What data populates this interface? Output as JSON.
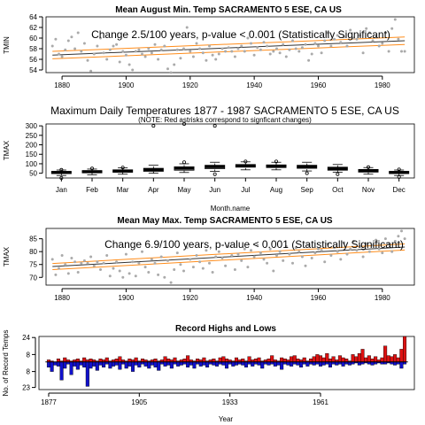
{
  "colors": {
    "points": "#aaaaaa",
    "fit": "#333333",
    "band": "#ff8c1a",
    "high": "#dd1111",
    "low": "#1111cc"
  },
  "chart_data": [
    {
      "id": "aug",
      "type": "scatter",
      "title": "Mean August Min. Temp SACRAMENTO 5 ESE, CA US",
      "annotation": "Change 2.5/100 years, p-value < 0.001 (Statistically Significant)",
      "ylabel": "TMIN",
      "xlim": [
        1875,
        1990
      ],
      "ylim": [
        53.5,
        64
      ],
      "xticks": [
        1880,
        1900,
        1920,
        1940,
        1960,
        1980
      ],
      "yticks": [
        54,
        56,
        58,
        60,
        62,
        64
      ],
      "fit": {
        "x": [
          1877,
          1987
        ],
        "y": [
          56.8,
          59.5
        ],
        "band": 0.7
      },
      "x": [
        1877,
        1878,
        1879,
        1880,
        1881,
        1882,
        1883,
        1884,
        1885,
        1886,
        1887,
        1888,
        1889,
        1890,
        1891,
        1892,
        1893,
        1894,
        1895,
        1896,
        1897,
        1898,
        1899,
        1900,
        1901,
        1902,
        1903,
        1904,
        1905,
        1906,
        1907,
        1908,
        1909,
        1910,
        1911,
        1912,
        1913,
        1914,
        1915,
        1916,
        1917,
        1918,
        1919,
        1920,
        1921,
        1922,
        1923,
        1924,
        1925,
        1926,
        1927,
        1928,
        1929,
        1930,
        1931,
        1932,
        1933,
        1934,
        1935,
        1936,
        1937,
        1938,
        1939,
        1940,
        1941,
        1942,
        1943,
        1944,
        1945,
        1946,
        1947,
        1948,
        1949,
        1950,
        1951,
        1952,
        1953,
        1954,
        1955,
        1956,
        1957,
        1958,
        1959,
        1960,
        1961,
        1962,
        1963,
        1964,
        1965,
        1966,
        1967,
        1968,
        1969,
        1970,
        1971,
        1972,
        1973,
        1974,
        1975,
        1976,
        1977,
        1978,
        1979,
        1980,
        1981,
        1982,
        1983,
        1984,
        1985,
        1986,
        1987
      ],
      "y": [
        58.5,
        59.8,
        57.0,
        56.5,
        57.8,
        59.5,
        60.2,
        58.0,
        61.0,
        57.5,
        59.0,
        55.8,
        53.8,
        57.0,
        58.5,
        60.0,
        57.2,
        56.0,
        57.8,
        58.5,
        58.8,
        55.5,
        57.5,
        56.8,
        55.0,
        54.0,
        57.5,
        57.8,
        57.0,
        56.5,
        58.0,
        57.2,
        58.8,
        56.0,
        57.8,
        58.5,
        54.2,
        53.5,
        55.0,
        57.8,
        56.2,
        58.0,
        62.0,
        57.5,
        56.5,
        59.0,
        58.0,
        57.2,
        55.8,
        58.5,
        56.8,
        56.0,
        57.0,
        58.0,
        57.5,
        58.2,
        57.5,
        56.5,
        58.0,
        58.5,
        57.5,
        60.0,
        59.0,
        56.8,
        58.2,
        57.8,
        59.2,
        58.5,
        57.0,
        57.5,
        58.0,
        57.2,
        58.8,
        56.5,
        57.8,
        59.5,
        58.0,
        57.5,
        58.2,
        58.8,
        55.8,
        57.0,
        59.0,
        58.5,
        57.2,
        59.5,
        61.0,
        58.5,
        59.8,
        60.5,
        59.2,
        60.2,
        58.5,
        61.5,
        60.0,
        59.8,
        60.5,
        57.2,
        61.8,
        61.0,
        59.5,
        60.2,
        58.5,
        59.0,
        61.0,
        57.5,
        61.8,
        63.5,
        59.8,
        57.5,
        57.5
      ]
    },
    {
      "id": "box",
      "type": "box",
      "title": "Maximum Daily Temperatures 1877 - 1987 SACRAMENTO 5 ESE, CA US",
      "subtitle": "(NOTE: Red astrisks correspond to signficant changes)",
      "xlabel": "Month.name",
      "ylabel": "TMAX",
      "ylim": [
        25,
        310
      ],
      "yticks": [
        50,
        100,
        150,
        200,
        250,
        300
      ],
      "categories": [
        "Jan",
        "Feb",
        "Mar",
        "Apr",
        "May",
        "Jun",
        "Jul",
        "Aug",
        "Sep",
        "Oct",
        "Nov",
        "Dec"
      ],
      "boxes": [
        {
          "whisker_low": 38,
          "q1": 48,
          "median": 54,
          "q3": 60,
          "whisker_high": 67,
          "outliers": [
            25,
            68
          ]
        },
        {
          "whisker_low": 42,
          "q1": 52,
          "median": 58,
          "q3": 64,
          "whisker_high": 72,
          "outliers": [
            75
          ]
        },
        {
          "whisker_low": 45,
          "q1": 55,
          "median": 62,
          "q3": 68,
          "whisker_high": 78,
          "outliers": [
            80
          ]
        },
        {
          "whisker_low": 50,
          "q1": 60,
          "median": 68,
          "q3": 76,
          "whisker_high": 92,
          "outliers": [
            300
          ]
        },
        {
          "whisker_low": 54,
          "q1": 66,
          "median": 76,
          "q3": 84,
          "whisker_high": 100,
          "outliers": [
            108,
            310
          ]
        },
        {
          "whisker_low": 60,
          "q1": 74,
          "median": 84,
          "q3": 92,
          "whisker_high": 108,
          "outliers": [
            45,
            300
          ]
        },
        {
          "whisker_low": 68,
          "q1": 82,
          "median": 90,
          "q3": 96,
          "whisker_high": 110,
          "outliers": [
            112
          ]
        },
        {
          "whisker_low": 68,
          "q1": 80,
          "median": 88,
          "q3": 94,
          "whisker_high": 108,
          "outliers": [
            112
          ]
        },
        {
          "whisker_low": 62,
          "q1": 76,
          "median": 84,
          "q3": 92,
          "whisker_high": 108,
          "outliers": [
            50
          ]
        },
        {
          "whisker_low": 55,
          "q1": 66,
          "median": 74,
          "q3": 82,
          "whisker_high": 96,
          "outliers": [
            45
          ]
        },
        {
          "whisker_low": 45,
          "q1": 56,
          "median": 63,
          "q3": 70,
          "whisker_high": 80,
          "outliers": [
            82
          ]
        },
        {
          "whisker_low": 38,
          "q1": 48,
          "median": 54,
          "q3": 60,
          "whisker_high": 67,
          "outliers": [
            30,
            70
          ]
        }
      ]
    },
    {
      "id": "may",
      "type": "scatter",
      "title": "Mean May Max. Temp SACRAMENTO 5 ESE, CA US",
      "annotation": "Change 6.9/100 years, p-value < 0.001 (Statistically Significant)",
      "ylabel": "TMAX",
      "xlim": [
        1875,
        1990
      ],
      "ylim": [
        67,
        89
      ],
      "xticks": [
        1880,
        1900,
        1920,
        1940,
        1960,
        1980
      ],
      "yticks": [
        70,
        75,
        80,
        85
      ],
      "fit": {
        "x": [
          1877,
          1987
        ],
        "y": [
          74.2,
          81.8
        ],
        "band": 1.2
      },
      "x": [
        1877,
        1878,
        1879,
        1880,
        1881,
        1882,
        1883,
        1884,
        1885,
        1886,
        1887,
        1888,
        1889,
        1890,
        1891,
        1892,
        1893,
        1894,
        1895,
        1896,
        1897,
        1898,
        1899,
        1900,
        1901,
        1902,
        1903,
        1904,
        1905,
        1906,
        1907,
        1908,
        1909,
        1910,
        1911,
        1912,
        1913,
        1914,
        1915,
        1916,
        1917,
        1918,
        1919,
        1920,
        1921,
        1922,
        1923,
        1924,
        1925,
        1926,
        1927,
        1928,
        1929,
        1930,
        1931,
        1932,
        1933,
        1934,
        1935,
        1936,
        1937,
        1938,
        1939,
        1940,
        1941,
        1942,
        1943,
        1944,
        1945,
        1946,
        1947,
        1948,
        1949,
        1950,
        1951,
        1952,
        1953,
        1954,
        1955,
        1956,
        1957,
        1958,
        1959,
        1960,
        1961,
        1962,
        1963,
        1964,
        1965,
        1966,
        1967,
        1968,
        1969,
        1970,
        1971,
        1972,
        1973,
        1974,
        1975,
        1976,
        1977,
        1978,
        1979,
        1980,
        1981,
        1982,
        1983,
        1984,
        1985,
        1986,
        1987
      ],
      "y": [
        77.0,
        71.0,
        73.5,
        78.5,
        75.0,
        71.5,
        77.5,
        76.0,
        72.0,
        75.5,
        76.5,
        75.5,
        78.0,
        74.5,
        76.0,
        73.0,
        75.5,
        78.5,
        70.5,
        73.5,
        76.0,
        72.5,
        70.0,
        79.0,
        71.5,
        76.0,
        70.5,
        75.5,
        80.0,
        74.0,
        72.0,
        77.0,
        75.5,
        71.0,
        78.0,
        70.0,
        76.5,
        68.0,
        73.0,
        79.5,
        75.0,
        72.5,
        81.5,
        77.0,
        74.0,
        78.5,
        76.0,
        73.5,
        80.5,
        75.5,
        72.0,
        78.0,
        80.0,
        77.5,
        74.5,
        82.0,
        78.5,
        73.0,
        79.0,
        76.5,
        81.0,
        74.0,
        80.5,
        78.0,
        82.5,
        79.5,
        77.0,
        75.5,
        81.0,
        72.5,
        78.5,
        80.0,
        76.5,
        82.0,
        79.0,
        75.5,
        81.5,
        80.0,
        78.0,
        74.5,
        82.5,
        77.5,
        79.5,
        81.0,
        80.5,
        76.0,
        83.0,
        78.5,
        81.5,
        80.0,
        77.0,
        83.5,
        79.0,
        81.0,
        84.0,
        80.5,
        82.0,
        78.0,
        83.0,
        80.0,
        82.5,
        84.5,
        81.0,
        79.5,
        85.0,
        83.0,
        80.0,
        84.0,
        86.0,
        88.0,
        85.0
      ]
    },
    {
      "id": "rec",
      "type": "bar",
      "title": "Record Highs and Lows",
      "xlabel": "Year",
      "ylabel": "No. of Record Temps",
      "xlim": [
        1874,
        1990
      ],
      "ylim": [
        -25,
        25
      ],
      "xticks": [
        1877,
        1905,
        1933,
        1961
      ],
      "ytick_values": [
        24,
        8,
        -8,
        -23
      ],
      "ytick_labels": [
        "24",
        "8",
        "8",
        "23"
      ],
      "baseline": 1,
      "x": [
        1877,
        1878,
        1879,
        1880,
        1881,
        1882,
        1883,
        1884,
        1885,
        1886,
        1887,
        1888,
        1889,
        1890,
        1891,
        1892,
        1893,
        1894,
        1895,
        1896,
        1897,
        1898,
        1899,
        1900,
        1901,
        1902,
        1903,
        1904,
        1905,
        1906,
        1907,
        1908,
        1909,
        1910,
        1911,
        1912,
        1913,
        1914,
        1915,
        1916,
        1917,
        1918,
        1919,
        1920,
        1921,
        1922,
        1923,
        1924,
        1925,
        1926,
        1927,
        1928,
        1929,
        1930,
        1931,
        1932,
        1933,
        1934,
        1935,
        1936,
        1937,
        1938,
        1939,
        1940,
        1941,
        1942,
        1943,
        1944,
        1945,
        1946,
        1947,
        1948,
        1949,
        1950,
        1951,
        1952,
        1953,
        1954,
        1955,
        1956,
        1957,
        1958,
        1959,
        1960,
        1961,
        1962,
        1963,
        1964,
        1965,
        1966,
        1967,
        1968,
        1969,
        1970,
        1971,
        1972,
        1973,
        1974,
        1975,
        1976,
        1977,
        1978,
        1979,
        1980,
        1981,
        1982,
        1983,
        1984,
        1985,
        1986,
        1987
      ],
      "highs": [
        2,
        1,
        0,
        3,
        1,
        4,
        2,
        1,
        2,
        3,
        1,
        4,
        2,
        3,
        2,
        1,
        3,
        2,
        4,
        1,
        2,
        3,
        5,
        2,
        1,
        3,
        2,
        4,
        1,
        3,
        2,
        1,
        2,
        3,
        1,
        2,
        5,
        3,
        2,
        4,
        1,
        2,
        3,
        6,
        2,
        1,
        3,
        2,
        4,
        1,
        2,
        3,
        1,
        4,
        5,
        3,
        2,
        1,
        4,
        2,
        3,
        1,
        5,
        2,
        3,
        4,
        1,
        2,
        3,
        6,
        2,
        1,
        4,
        3,
        2,
        5,
        6,
        3,
        2,
        4,
        1,
        3,
        5,
        7,
        6,
        4,
        8,
        3,
        5,
        2,
        6,
        4,
        3,
        1,
        7,
        5,
        8,
        12,
        4,
        6,
        3,
        5,
        2,
        4,
        15,
        6,
        5,
        7,
        4,
        12,
        24
      ],
      "lows": [
        -5,
        -9,
        -3,
        -4,
        -17,
        -6,
        -2,
        -12,
        -4,
        -7,
        -3,
        -5,
        -23,
        -6,
        -4,
        -8,
        -3,
        -5,
        -2,
        -6,
        -4,
        -3,
        -7,
        -2,
        -6,
        -4,
        -9,
        -3,
        -5,
        -2,
        -4,
        -6,
        -3,
        -5,
        -8,
        -2,
        -4,
        -3,
        -6,
        -2,
        -4,
        -3,
        -2,
        -5,
        -3,
        -6,
        -2,
        -4,
        -3,
        -5,
        -2,
        -3,
        -4,
        -2,
        -3,
        -6,
        -2,
        -4,
        -3,
        -2,
        -3,
        -5,
        -2,
        -4,
        -2,
        -3,
        -6,
        -2,
        -3,
        -2,
        -4,
        -3,
        -7,
        -2,
        -3,
        -4,
        -2,
        -3,
        -5,
        -2,
        -4,
        -2,
        -3,
        -2,
        -4,
        -3,
        -2,
        -5,
        -2,
        -3,
        -2,
        -4,
        -2,
        -3,
        -2,
        -1,
        -3,
        -2,
        -1,
        -2,
        -3,
        -2,
        -1,
        -2,
        -2,
        -1,
        -2,
        -3,
        -2,
        -6,
        -2
      ]
    }
  ]
}
